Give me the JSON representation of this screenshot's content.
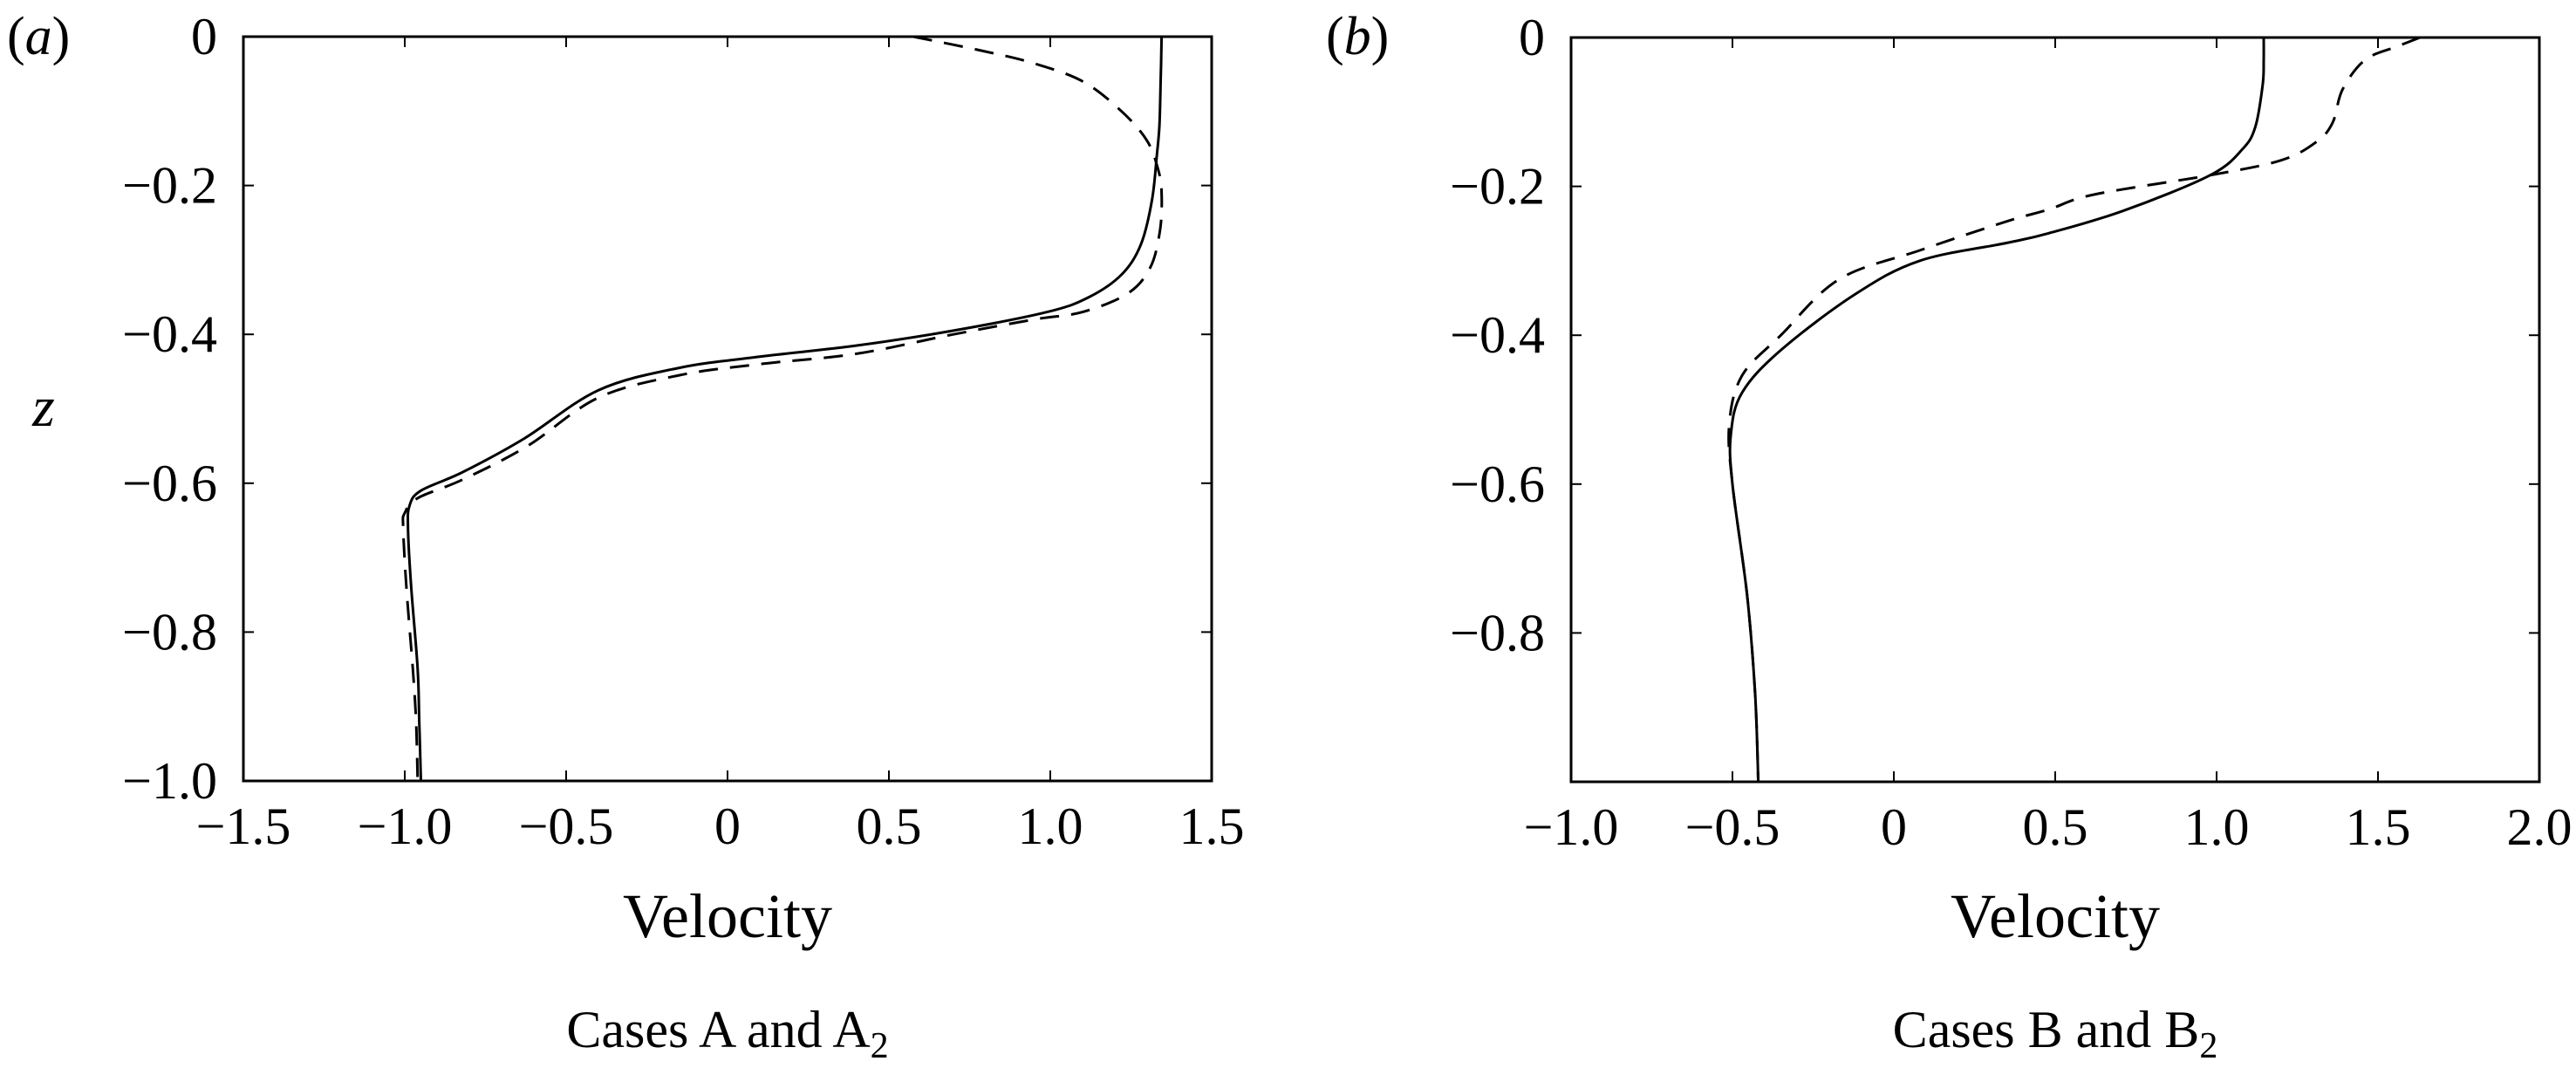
{
  "chart_data": [
    {
      "type": "line",
      "panel_label": "(a)",
      "panel_letter": "a",
      "title": "",
      "caption": "Cases A and A",
      "caption_subscript": "2",
      "xlabel": "Velocity",
      "ylabel": "z",
      "xlim": [
        -1.5,
        1.5
      ],
      "ylim": [
        -1.0,
        0
      ],
      "xticks": [
        -1.5,
        -1.0,
        -0.5,
        0,
        0.5,
        1.0,
        1.5
      ],
      "xtick_labels": [
        "−1.5",
        "−1.0",
        "−0.5",
        "0",
        "0.5",
        "1.0",
        "1.5"
      ],
      "yticks": [
        0,
        -0.2,
        -0.4,
        -0.6,
        -0.8,
        -1.0
      ],
      "ytick_labels": [
        "0",
        "−0.2",
        "−0.4",
        "−0.6",
        "−0.8",
        "−1.0"
      ],
      "grid": false,
      "legend": "none",
      "series": [
        {
          "name": "Case A",
          "style": "solid",
          "points": [
            [
              1.345,
              0
            ],
            [
              1.342,
              -0.06
            ],
            [
              1.338,
              -0.12
            ],
            [
              1.33,
              -0.16
            ],
            [
              1.315,
              -0.22
            ],
            [
              1.28,
              -0.28
            ],
            [
              1.22,
              -0.32
            ],
            [
              1.12,
              -0.35
            ],
            [
              0.99,
              -0.37
            ],
            [
              0.7,
              -0.395
            ],
            [
              0.4,
              -0.415
            ],
            [
              0.1,
              -0.43
            ],
            [
              -0.15,
              -0.445
            ],
            [
              -0.4,
              -0.475
            ],
            [
              -0.63,
              -0.54
            ],
            [
              -0.82,
              -0.585
            ],
            [
              -0.95,
              -0.61
            ],
            [
              -0.985,
              -0.63
            ],
            [
              -0.99,
              -0.66
            ],
            [
              -0.98,
              -0.74
            ],
            [
              -0.96,
              -0.85
            ],
            [
              -0.955,
              -0.92
            ],
            [
              -0.95,
              -1.0
            ]
          ]
        },
        {
          "name": "Case A2",
          "style": "dashed",
          "points": [
            [
              0.575,
              0
            ],
            [
              0.8,
              -0.02
            ],
            [
              0.95,
              -0.036
            ],
            [
              1.1,
              -0.06
            ],
            [
              1.22,
              -0.1
            ],
            [
              1.3,
              -0.14
            ],
            [
              1.335,
              -0.18
            ],
            [
              1.345,
              -0.21
            ],
            [
              1.34,
              -0.26
            ],
            [
              1.31,
              -0.31
            ],
            [
              1.24,
              -0.345
            ],
            [
              1.1,
              -0.37
            ],
            [
              0.95,
              -0.38
            ],
            [
              0.7,
              -0.4
            ],
            [
              0.4,
              -0.426
            ],
            [
              0.1,
              -0.44
            ],
            [
              -0.15,
              -0.455
            ],
            [
              -0.4,
              -0.485
            ],
            [
              -0.62,
              -0.55
            ],
            [
              -0.82,
              -0.595
            ],
            [
              -0.96,
              -0.62
            ],
            [
              -1.0,
              -0.64
            ],
            [
              -1.005,
              -0.66
            ],
            [
              -0.995,
              -0.74
            ],
            [
              -0.975,
              -0.85
            ],
            [
              -0.965,
              -0.92
            ],
            [
              -0.96,
              -1.0
            ]
          ]
        }
      ]
    },
    {
      "type": "line",
      "panel_label": "(b)",
      "panel_letter": "b",
      "title": "",
      "caption": "Cases B and B",
      "caption_subscript": "2",
      "xlabel": "Velocity",
      "ylabel": "",
      "xlim": [
        -1.0,
        2.0
      ],
      "ylim": [
        -1.0,
        0
      ],
      "xticks": [
        -1.0,
        -0.5,
        0,
        0.5,
        1.0,
        1.5,
        2.0
      ],
      "xtick_labels": [
        "−1.0",
        "−0.5",
        "0",
        "0.5",
        "1.0",
        "1.5",
        "2.0"
      ],
      "yticks": [
        0,
        -0.2,
        -0.4,
        -0.6,
        -0.8
      ],
      "ytick_labels": [
        "0",
        "−0.2",
        "−0.4",
        "−0.6",
        "−0.8"
      ],
      "grid": false,
      "legend": "none",
      "series": [
        {
          "name": "Case B",
          "style": "solid",
          "points": [
            [
              1.146,
              0
            ],
            [
              1.146,
              -0.03
            ],
            [
              1.143,
              -0.063
            ],
            [
              1.12,
              -0.12
            ],
            [
              1.08,
              -0.15
            ],
            [
              0.98,
              -0.185
            ],
            [
              0.71,
              -0.233
            ],
            [
              0.48,
              -0.263
            ],
            [
              0.35,
              -0.276
            ],
            [
              0.08,
              -0.3
            ],
            [
              -0.12,
              -0.345
            ],
            [
              -0.35,
              -0.42
            ],
            [
              -0.47,
              -0.477
            ],
            [
              -0.505,
              -0.533
            ],
            [
              -0.5,
              -0.6
            ],
            [
              -0.455,
              -0.748
            ],
            [
              -0.43,
              -0.88
            ],
            [
              -0.42,
              -1.0
            ]
          ]
        },
        {
          "name": "Case B2",
          "style": "dashed",
          "points": [
            [
              1.63,
              0
            ],
            [
              1.56,
              -0.012
            ],
            [
              1.46,
              -0.03
            ],
            [
              1.39,
              -0.07
            ],
            [
              1.36,
              -0.114
            ],
            [
              1.31,
              -0.14
            ],
            [
              1.2,
              -0.165
            ],
            [
              0.98,
              -0.185
            ],
            [
              0.62,
              -0.211
            ],
            [
              0.48,
              -0.231
            ],
            [
              0.35,
              -0.247
            ],
            [
              0.08,
              -0.286
            ],
            [
              -0.17,
              -0.325
            ],
            [
              -0.35,
              -0.4
            ],
            [
              -0.47,
              -0.454
            ],
            [
              -0.51,
              -0.52
            ],
            [
              -0.5,
              -0.6
            ],
            [
              -0.455,
              -0.748
            ],
            [
              -0.43,
              -0.88
            ],
            [
              -0.42,
              -1.0
            ]
          ]
        }
      ]
    }
  ]
}
